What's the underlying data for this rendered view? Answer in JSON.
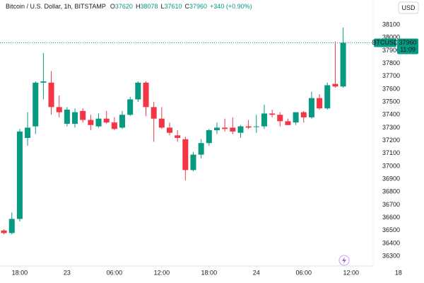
{
  "ui": {
    "title": "Bitcoin / U.S. Dollar, 1h, BITSTAMP",
    "ohlc_letters": [
      "O",
      "H",
      "L",
      "C"
    ],
    "change": "+340 (+0.90%)",
    "currency": "USD",
    "symbol": "BTCUSD",
    "countdown": "11:09"
  },
  "chart_data": {
    "type": "candlestick",
    "x": [
      0,
      1,
      2,
      3,
      4,
      5,
      6,
      7,
      8,
      9,
      10,
      11,
      12,
      13,
      14,
      15,
      16,
      17,
      18,
      19,
      20,
      21,
      22,
      23,
      24,
      25,
      26,
      27,
      28,
      29,
      30,
      31,
      32,
      33,
      34,
      35,
      36,
      37,
      38,
      39,
      40,
      41,
      42,
      43
    ],
    "open": [
      36500,
      36480,
      36590,
      37220,
      37310,
      37650,
      37650,
      37460,
      37330,
      37330,
      37430,
      37360,
      37310,
      37370,
      37340,
      37300,
      37400,
      37520,
      37650,
      37460,
      37370,
      37300,
      37240,
      37210,
      36970,
      37090,
      37180,
      37280,
      37300,
      37300,
      37260,
      37310,
      37310,
      37310,
      37410,
      37400,
      37350,
      37340,
      37420,
      37380,
      37530,
      37450,
      37640,
      37620
    ],
    "high": [
      36510,
      36640,
      37290,
      37420,
      37660,
      37880,
      37740,
      37550,
      37460,
      37450,
      37450,
      37400,
      37410,
      37430,
      37380,
      37430,
      37540,
      37660,
      37660,
      37500,
      37460,
      37340,
      37280,
      37230,
      37110,
      37210,
      37290,
      37340,
      37370,
      37380,
      37320,
      37360,
      37400,
      37480,
      37440,
      37420,
      37370,
      37400,
      37430,
      37580,
      37560,
      37650,
      37970,
      38078
    ],
    "low": [
      36470,
      36470,
      36570,
      37160,
      37250,
      37520,
      37400,
      37380,
      37310,
      37300,
      37340,
      37280,
      37300,
      37330,
      37280,
      37290,
      37390,
      37500,
      37390,
      37190,
      37290,
      37240,
      37190,
      36890,
      36960,
      37060,
      37160,
      37250,
      37270,
      37250,
      37220,
      37290,
      37260,
      37290,
      37380,
      37310,
      37320,
      37320,
      37340,
      37370,
      37440,
      37440,
      37610,
      37610
    ],
    "close": [
      36480,
      36590,
      37270,
      37300,
      37650,
      37660,
      37460,
      37420,
      37440,
      37420,
      37360,
      37320,
      37370,
      37340,
      37290,
      37400,
      37520,
      37650,
      37460,
      37370,
      37300,
      37260,
      37220,
      36970,
      37090,
      37180,
      37280,
      37300,
      37290,
      37270,
      37310,
      37300,
      37310,
      37410,
      37400,
      37350,
      37320,
      37420,
      37380,
      37530,
      37450,
      37630,
      37620,
      37960
    ],
    "up_color": "#089981",
    "down_color": "#f23645",
    "xlim": [
      -0.5,
      46.8
    ],
    "xticks": [
      {
        "value": 2,
        "label": "18:00"
      },
      {
        "value": 8,
        "label": "23"
      },
      {
        "value": 14,
        "label": "06:00"
      },
      {
        "value": 20,
        "label": "12:00"
      },
      {
        "value": 26,
        "label": "18:00"
      },
      {
        "value": 32,
        "label": "24"
      },
      {
        "value": 38,
        "label": "06:00"
      },
      {
        "value": 44,
        "label": "12:00"
      },
      {
        "value": 50,
        "label": "18"
      }
    ],
    "ylim": [
      36229,
      38293
    ],
    "yticks": [
      36300,
      36400,
      36500,
      36600,
      36700,
      36800,
      36900,
      37000,
      37100,
      37200,
      37300,
      37400,
      37500,
      37600,
      37700,
      37800,
      37900,
      38000,
      38100
    ],
    "grid": false
  }
}
